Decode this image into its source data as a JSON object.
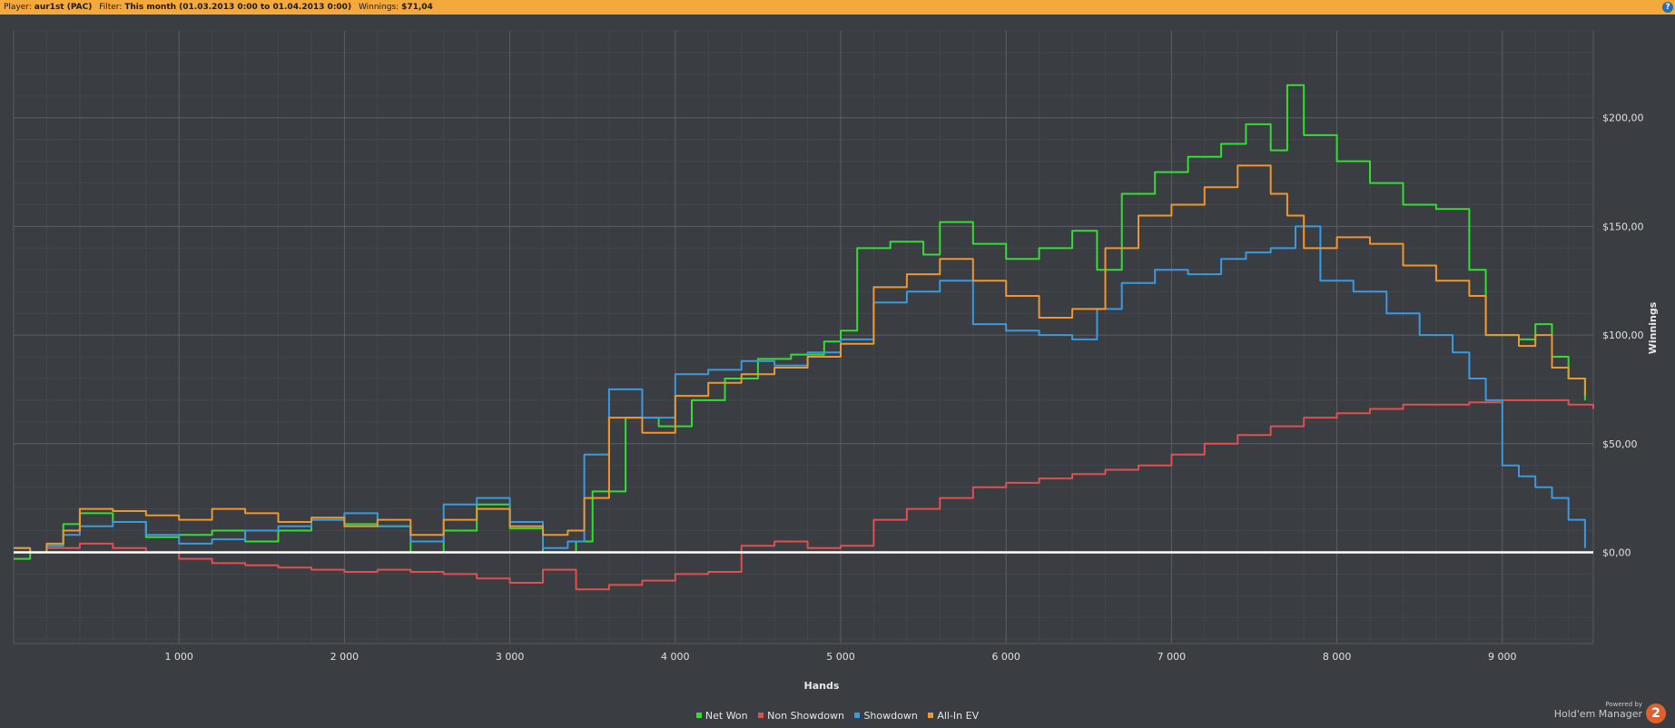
{
  "header": {
    "player_label": "Player:",
    "player_value": "aur1st (PAC)",
    "filter_label": "Filter:",
    "filter_value": "This month (01.03.2013 0:00 to 01.04.2013 0:00)",
    "winnings_label": "Winnings:",
    "winnings_value": "$71,04",
    "help_glyph": "?"
  },
  "footer": {
    "powered_by": "Powered by",
    "brand": "Hold'em Manager",
    "logo_glyph": "2"
  },
  "colors": {
    "background": "#3a3d42",
    "header": "#f4a93c",
    "net_won": "#33dd33",
    "non_showdown": "#e05050",
    "showdown": "#3a9ae0",
    "all_in_ev": "#f0962e",
    "zero_line": "#ffffff"
  },
  "chart_data": {
    "type": "line",
    "title": "",
    "xlabel": "Hands",
    "ylabel": "Winnings",
    "xlim": [
      0,
      9550
    ],
    "ylim": [
      -42,
      240
    ],
    "x_ticks": [
      1000,
      2000,
      3000,
      4000,
      5000,
      6000,
      7000,
      8000,
      9000
    ],
    "x_tick_labels": [
      "1 000",
      "2 000",
      "3 000",
      "4 000",
      "5 000",
      "6 000",
      "7 000",
      "8 000",
      "9 000"
    ],
    "y_ticks": [
      0,
      50,
      100,
      150,
      200
    ],
    "y_tick_labels": [
      "$0,00",
      "$50,00",
      "$100,00",
      "$150,00",
      "$200,00"
    ],
    "grid": true,
    "legend_position": "bottom-center",
    "series": [
      {
        "name": "Net Won",
        "color": "#33dd33",
        "x": [
          0,
          100,
          200,
          300,
          400,
          600,
          800,
          1000,
          1200,
          1400,
          1600,
          1800,
          2000,
          2200,
          2400,
          2600,
          2800,
          3000,
          3200,
          3400,
          3500,
          3700,
          3900,
          4100,
          4300,
          4500,
          4700,
          4900,
          5000,
          5100,
          5300,
          5500,
          5600,
          5800,
          6000,
          6200,
          6400,
          6550,
          6700,
          6900,
          7100,
          7300,
          7450,
          7600,
          7700,
          7800,
          8000,
          8200,
          8400,
          8600,
          8800,
          8900,
          9100,
          9200,
          9300,
          9400,
          9500
        ],
        "y": [
          -3,
          0,
          3,
          13,
          18,
          14,
          7,
          8,
          10,
          5,
          10,
          15,
          13,
          12,
          0,
          10,
          22,
          11,
          0,
          5,
          28,
          62,
          58,
          70,
          80,
          89,
          91,
          97,
          102,
          140,
          143,
          137,
          152,
          142,
          135,
          140,
          148,
          130,
          165,
          175,
          182,
          188,
          197,
          185,
          215,
          192,
          180,
          170,
          160,
          158,
          130,
          100,
          98,
          105,
          90,
          80,
          70
        ]
      },
      {
        "name": "Non Showdown",
        "color": "#e05050",
        "x": [
          0,
          200,
          400,
          600,
          800,
          1000,
          1200,
          1400,
          1600,
          1800,
          2000,
          2200,
          2400,
          2600,
          2800,
          3000,
          3200,
          3400,
          3600,
          3800,
          4000,
          4200,
          4400,
          4600,
          4800,
          5000,
          5200,
          5400,
          5600,
          5800,
          6000,
          6200,
          6400,
          6600,
          6800,
          7000,
          7200,
          7400,
          7600,
          7800,
          8000,
          8200,
          8400,
          8600,
          8800,
          9000,
          9200,
          9400,
          9550
        ],
        "y": [
          0,
          2,
          4,
          2,
          0,
          -3,
          -5,
          -6,
          -7,
          -8,
          -9,
          -8,
          -9,
          -10,
          -12,
          -14,
          -8,
          -17,
          -15,
          -13,
          -10,
          -9,
          3,
          5,
          2,
          3,
          15,
          20,
          25,
          30,
          32,
          34,
          36,
          38,
          40,
          45,
          50,
          54,
          58,
          62,
          64,
          66,
          68,
          68,
          69,
          70,
          70,
          68,
          66
        ]
      },
      {
        "name": "Showdown",
        "color": "#3a9ae0",
        "x": [
          0,
          100,
          200,
          300,
          400,
          600,
          800,
          1000,
          1200,
          1400,
          1600,
          1800,
          2000,
          2200,
          2400,
          2600,
          2800,
          3000,
          3200,
          3350,
          3450,
          3600,
          3800,
          4000,
          4200,
          4400,
          4600,
          4800,
          5000,
          5200,
          5400,
          5600,
          5800,
          6000,
          6200,
          6400,
          6550,
          6700,
          6900,
          7100,
          7300,
          7450,
          7600,
          7750,
          7900,
          8100,
          8300,
          8500,
          8700,
          8800,
          8900,
          9000,
          9100,
          9200,
          9300,
          9400,
          9500
        ],
        "y": [
          2,
          0,
          3,
          8,
          12,
          14,
          8,
          4,
          6,
          10,
          12,
          15,
          18,
          12,
          5,
          22,
          25,
          14,
          2,
          5,
          45,
          75,
          62,
          82,
          84,
          88,
          86,
          92,
          98,
          115,
          120,
          125,
          105,
          102,
          100,
          98,
          112,
          124,
          130,
          128,
          135,
          138,
          140,
          150,
          125,
          120,
          110,
          100,
          92,
          80,
          70,
          40,
          35,
          30,
          25,
          15,
          2
        ]
      },
      {
        "name": "All-In EV",
        "color": "#f0962e",
        "x": [
          0,
          100,
          200,
          300,
          400,
          600,
          800,
          1000,
          1200,
          1400,
          1600,
          1800,
          2000,
          2200,
          2400,
          2600,
          2800,
          3000,
          3200,
          3350,
          3450,
          3600,
          3800,
          4000,
          4200,
          4400,
          4600,
          4800,
          5000,
          5200,
          5400,
          5600,
          5800,
          6000,
          6200,
          6400,
          6600,
          6800,
          7000,
          7200,
          7400,
          7600,
          7700,
          7800,
          8000,
          8200,
          8400,
          8600,
          8800,
          8900,
          9100,
          9200,
          9300,
          9400,
          9500
        ],
        "y": [
          2,
          0,
          4,
          10,
          20,
          19,
          17,
          15,
          20,
          18,
          14,
          16,
          12,
          15,
          8,
          15,
          20,
          12,
          8,
          10,
          25,
          62,
          55,
          72,
          78,
          82,
          85,
          90,
          96,
          122,
          128,
          135,
          125,
          118,
          108,
          112,
          140,
          155,
          160,
          168,
          178,
          165,
          155,
          140,
          145,
          142,
          132,
          125,
          118,
          100,
          95,
          100,
          85,
          80,
          72
        ]
      }
    ]
  }
}
